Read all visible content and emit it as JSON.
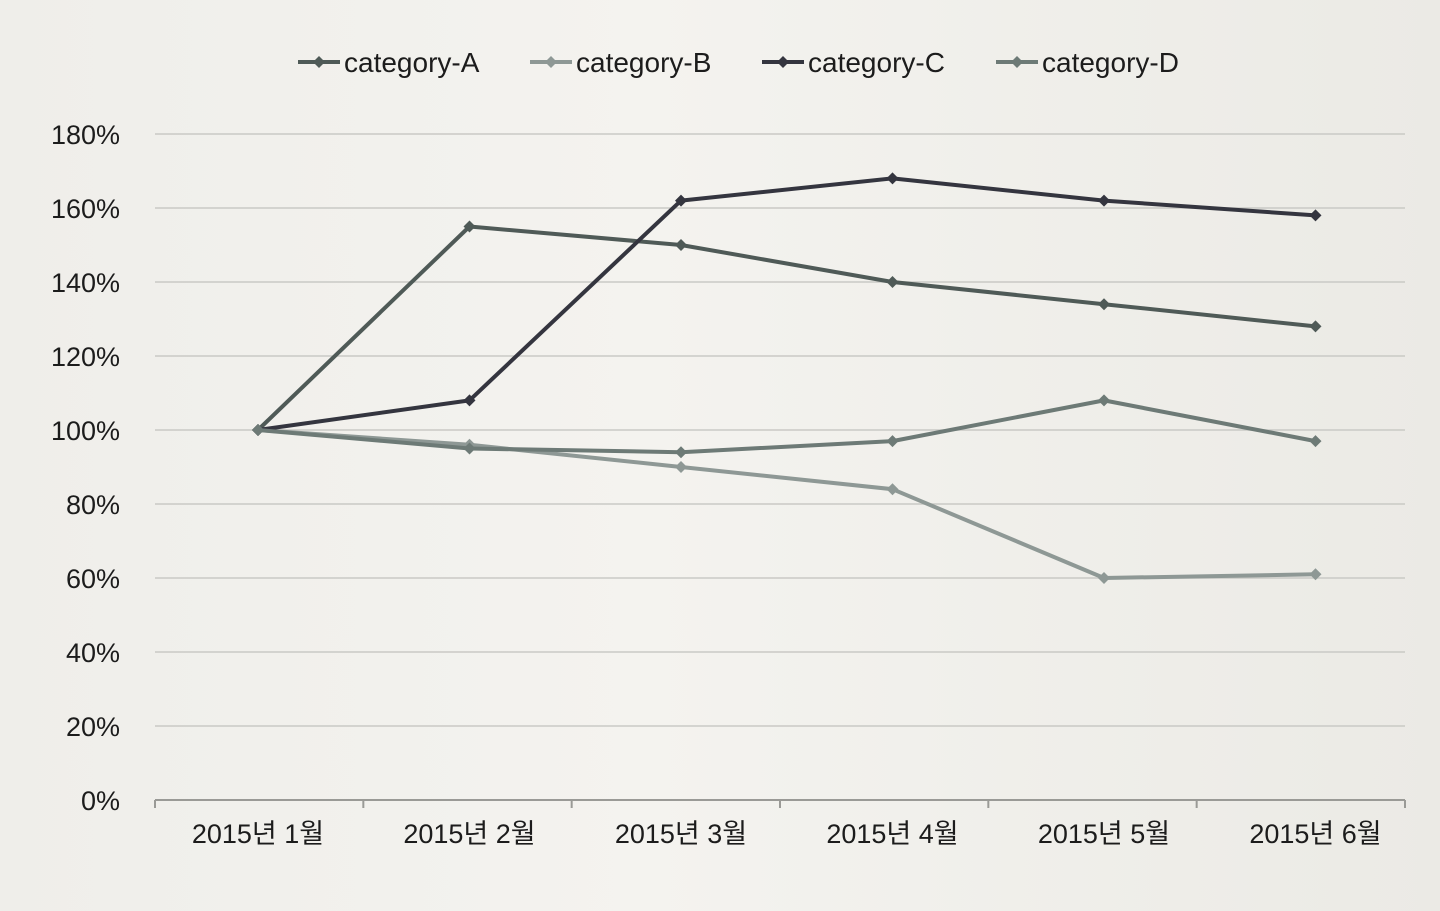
{
  "chart_data": {
    "type": "line",
    "categories": [
      "2015년 1월",
      "2015년 2월",
      "2015년 3월",
      "2015년 4월",
      "2015년 5월",
      "2015년 6월"
    ],
    "ylim": [
      0,
      180
    ],
    "yticks": [
      0,
      20,
      40,
      60,
      80,
      100,
      120,
      140,
      160,
      180
    ],
    "ytick_suffix": "%",
    "grid": true,
    "legend_position": "top",
    "series": [
      {
        "name": "category-A",
        "values": [
          100,
          155,
          150,
          140,
          134,
          128
        ],
        "color": "#4f5a57"
      },
      {
        "name": "category-B",
        "values": [
          100,
          96,
          90,
          84,
          60,
          61
        ],
        "color": "#8e9895"
      },
      {
        "name": "category-C",
        "values": [
          100,
          108,
          162,
          168,
          162,
          158
        ],
        "color": "#34353f"
      },
      {
        "name": "category-D",
        "values": [
          100,
          95,
          94,
          97,
          108,
          97
        ],
        "color": "#6d7a76"
      }
    ]
  }
}
